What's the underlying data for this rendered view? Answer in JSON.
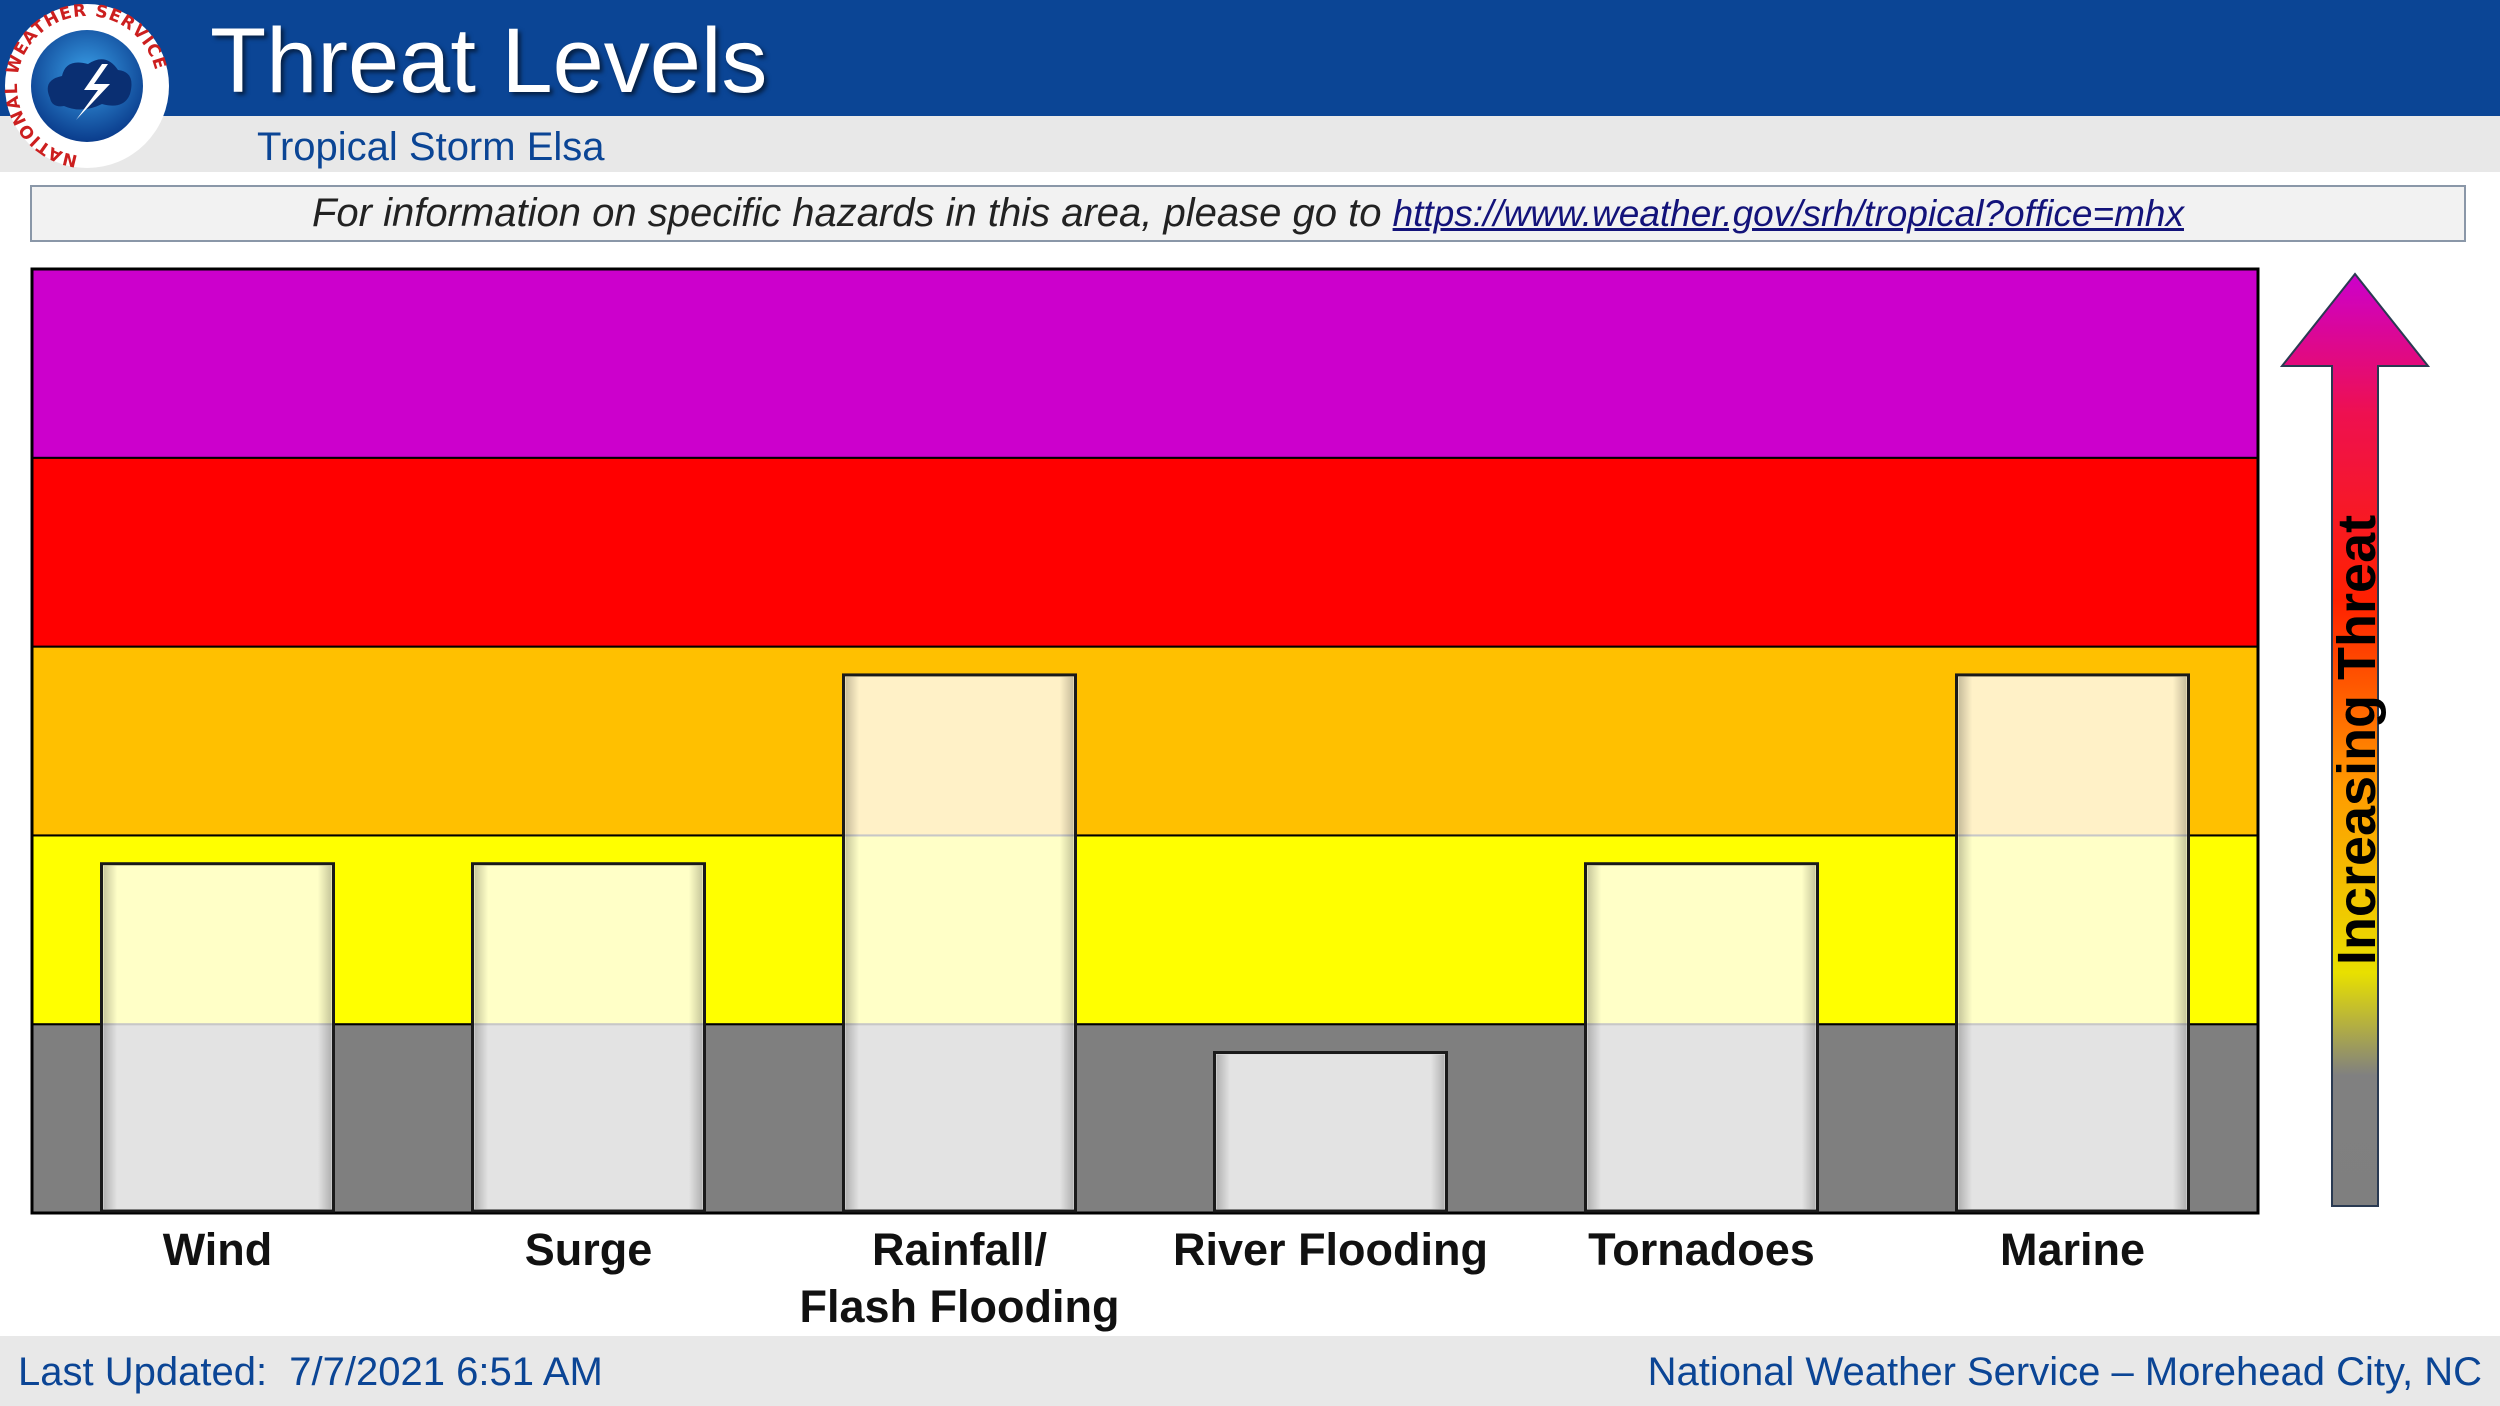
{
  "header": {
    "title": "Threat Levels",
    "subtitle": "Tropical Storm Elsa"
  },
  "logo": {
    "text": "NATIONAL WEATHER SERVICE"
  },
  "info": {
    "text": "For information on specific hazards in this area, please go to ",
    "link": "https://www.weather.gov/srh/tropical?office=mhx"
  },
  "colors": {
    "header_blue": "#0b4595",
    "levels": [
      "#7f7f7f",
      "#ffff00",
      "#ffc000",
      "#ff0000",
      "#cc00cc"
    ],
    "bar_fill": "#ffffff"
  },
  "chart_data": {
    "type": "bar",
    "categories": [
      "Wind",
      "Surge",
      "Rainfall/\nFlash Flooding",
      "River Flooding",
      "Tornadoes",
      "Marine"
    ],
    "values": [
      1.85,
      1.85,
      2.85,
      0.85,
      1.85,
      2.85
    ],
    "ylim": [
      0,
      5
    ],
    "arrow_label": "Increasing Threat",
    "grid": false,
    "legend": "none"
  },
  "footer": {
    "left": "Last Updated:  7/7/2021 6:51 AM",
    "right": "National Weather Service – Morehead City, NC"
  }
}
